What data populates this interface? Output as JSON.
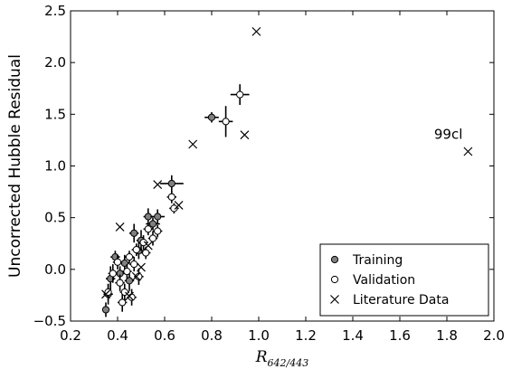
{
  "chart_data": {
    "type": "scatter",
    "xlabel_main": "R",
    "xlabel_sub": "642/443",
    "ylabel": "Uncorrected Hubble Residual",
    "xlim": [
      0.2,
      2.0
    ],
    "ylim": [
      -0.5,
      2.5
    ],
    "xticks": [
      "0.2",
      "0.4",
      "0.6",
      "0.8",
      "1.0",
      "1.2",
      "1.4",
      "1.6",
      "1.8",
      "2.0"
    ],
    "yticks": [
      "−0.5",
      "0.0",
      "0.5",
      "1.0",
      "1.5",
      "2.0",
      "2.5"
    ],
    "grid": false,
    "legend_position": "bottom-right",
    "annotation": {
      "text": "99cl",
      "x": 1.89,
      "y": 1.14
    },
    "series": [
      {
        "name": "Training",
        "marker": "filled-circle",
        "color": "#808080",
        "points": [
          {
            "x": 0.35,
            "y": -0.39,
            "ex": 0.01,
            "ey": 0.07
          },
          {
            "x": 0.36,
            "y": -0.24,
            "ex": 0.02,
            "ey": 0.1
          },
          {
            "x": 0.37,
            "y": -0.09,
            "ex": 0.02,
            "ey": 0.12
          },
          {
            "x": 0.39,
            "y": 0.12,
            "ex": 0.02,
            "ey": 0.06
          },
          {
            "x": 0.41,
            "y": -0.04,
            "ex": 0.02,
            "ey": 0.07
          },
          {
            "x": 0.43,
            "y": 0.06,
            "ex": 0.02,
            "ey": 0.08
          },
          {
            "x": 0.45,
            "y": -0.11,
            "ex": 0.02,
            "ey": 0.1
          },
          {
            "x": 0.47,
            "y": 0.35,
            "ex": 0.02,
            "ey": 0.09
          },
          {
            "x": 0.49,
            "y": 0.18,
            "ex": 0.02,
            "ey": 0.08
          },
          {
            "x": 0.5,
            "y": 0.28,
            "ex": 0.02,
            "ey": 0.1
          },
          {
            "x": 0.53,
            "y": 0.51,
            "ex": 0.02,
            "ey": 0.08
          },
          {
            "x": 0.55,
            "y": 0.44,
            "ex": 0.03,
            "ey": 0.06
          },
          {
            "x": 0.57,
            "y": 0.51,
            "ex": 0.03,
            "ey": 0.07
          },
          {
            "x": 0.63,
            "y": 0.83,
            "ex": 0.05,
            "ey": 0.08
          },
          {
            "x": 0.8,
            "y": 1.47,
            "ex": 0.03,
            "ey": 0.05
          }
        ]
      },
      {
        "name": "Validation",
        "marker": "open-circle",
        "color": "#ffffff",
        "points": [
          {
            "x": 0.36,
            "y": -0.22,
            "ex": 0.01,
            "ey": 0.08
          },
          {
            "x": 0.38,
            "y": -0.04,
            "ex": 0.02,
            "ey": 0.09
          },
          {
            "x": 0.4,
            "y": 0.07,
            "ex": 0.02,
            "ey": 0.07
          },
          {
            "x": 0.41,
            "y": -0.13,
            "ex": 0.02,
            "ey": 0.08
          },
          {
            "x": 0.42,
            "y": -0.32,
            "ex": 0.02,
            "ey": 0.09
          },
          {
            "x": 0.43,
            "y": -0.22,
            "ex": 0.02,
            "ey": 0.08
          },
          {
            "x": 0.44,
            "y": -0.02,
            "ex": 0.02,
            "ey": 0.07
          },
          {
            "x": 0.45,
            "y": 0.12,
            "ex": 0.02,
            "ey": 0.06
          },
          {
            "x": 0.46,
            "y": -0.27,
            "ex": 0.02,
            "ey": 0.08
          },
          {
            "x": 0.47,
            "y": 0.05,
            "ex": 0.02,
            "ey": 0.07
          },
          {
            "x": 0.48,
            "y": 0.19,
            "ex": 0.02,
            "ey": 0.06
          },
          {
            "x": 0.49,
            "y": -0.07,
            "ex": 0.02,
            "ey": 0.08
          },
          {
            "x": 0.51,
            "y": 0.26,
            "ex": 0.02,
            "ey": 0.07
          },
          {
            "x": 0.52,
            "y": 0.16,
            "ex": 0.02,
            "ey": 0.06
          },
          {
            "x": 0.53,
            "y": 0.39,
            "ex": 0.02,
            "ey": 0.06
          },
          {
            "x": 0.55,
            "y": 0.3,
            "ex": 0.02,
            "ey": 0.07
          },
          {
            "x": 0.57,
            "y": 0.37,
            "ex": 0.02,
            "ey": 0.06
          },
          {
            "x": 0.63,
            "y": 0.7,
            "ex": 0.02,
            "ey": 0.06
          },
          {
            "x": 0.64,
            "y": 0.59,
            "ex": 0.02,
            "ey": 0.05
          },
          {
            "x": 0.86,
            "y": 1.43,
            "ex": 0.03,
            "ey": 0.15
          },
          {
            "x": 0.92,
            "y": 1.69,
            "ex": 0.04,
            "ey": 0.1
          }
        ]
      },
      {
        "name": "Literature Data",
        "marker": "x",
        "color": "#000000",
        "points": [
          {
            "x": 0.35,
            "y": -0.24
          },
          {
            "x": 0.41,
            "y": 0.41
          },
          {
            "x": 0.45,
            "y": -0.26
          },
          {
            "x": 0.48,
            "y": -0.07
          },
          {
            "x": 0.5,
            "y": 0.02
          },
          {
            "x": 0.53,
            "y": 0.23
          },
          {
            "x": 0.57,
            "y": 0.82
          },
          {
            "x": 0.66,
            "y": 0.62
          },
          {
            "x": 0.72,
            "y": 1.21
          },
          {
            "x": 0.94,
            "y": 1.3
          },
          {
            "x": 0.99,
            "y": 2.3
          },
          {
            "x": 1.89,
            "y": 1.14
          }
        ]
      }
    ]
  }
}
